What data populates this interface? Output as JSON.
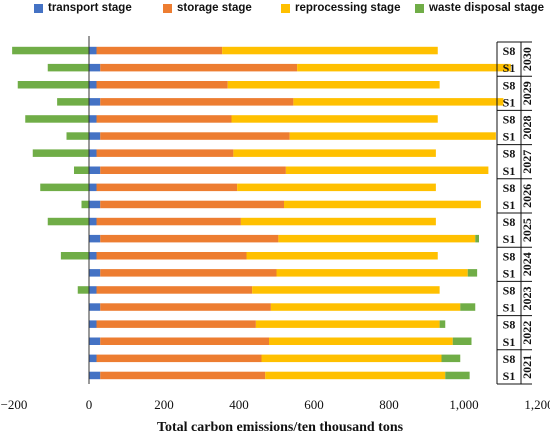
{
  "chart_data": {
    "type": "bar",
    "orientation": "horizontal",
    "stacked": true,
    "xlabel": "Total carbon emissions/ten thousand tons",
    "xlim": [
      -200,
      1200
    ],
    "xticks": [
      -200,
      0,
      200,
      400,
      600,
      800,
      1000,
      1200
    ],
    "xtick_labels": [
      "−200",
      "0",
      "200",
      "400",
      "600",
      "800",
      "1,000",
      "1,200"
    ],
    "legend_position": "top",
    "series": [
      {
        "name": "transport stage",
        "color": "#4472C4",
        "values": [
          20,
          30,
          20,
          30,
          20,
          30,
          20,
          30,
          20,
          30,
          20,
          30,
          20,
          30,
          20,
          30,
          20,
          30,
          20,
          30
        ]
      },
      {
        "name": "storage stage",
        "color": "#ED7D31",
        "values": [
          335,
          525,
          350,
          515,
          360,
          505,
          365,
          495,
          375,
          490,
          385,
          475,
          400,
          470,
          415,
          455,
          425,
          450,
          440,
          440
        ]
      },
      {
        "name": "reprocessing stage",
        "color": "#FFC000",
        "values": [
          575,
          570,
          565,
          560,
          550,
          550,
          540,
          540,
          530,
          525,
          520,
          525,
          510,
          510,
          500,
          505,
          490,
          490,
          480,
          480
        ]
      },
      {
        "name": "waste disposal stage",
        "color": "#70AD47",
        "values": [
          -205,
          -110,
          -190,
          -85,
          -170,
          -60,
          -150,
          -40,
          -130,
          -20,
          -110,
          10,
          -75,
          25,
          -30,
          40,
          15,
          50,
          50,
          65
        ]
      }
    ],
    "groups": [
      {
        "year": "2030",
        "rows": [
          "S8",
          "S1"
        ]
      },
      {
        "year": "2029",
        "rows": [
          "S8",
          "S1"
        ]
      },
      {
        "year": "2028",
        "rows": [
          "S8",
          "S1"
        ]
      },
      {
        "year": "2027",
        "rows": [
          "S8",
          "S1"
        ]
      },
      {
        "year": "2026",
        "rows": [
          "S8",
          "S1"
        ]
      },
      {
        "year": "2025",
        "rows": [
          "S8",
          "S1"
        ]
      },
      {
        "year": "2024",
        "rows": [
          "S8",
          "S1"
        ]
      },
      {
        "year": "2023",
        "rows": [
          "S8",
          "S1"
        ]
      },
      {
        "year": "2022",
        "rows": [
          "S8",
          "S1"
        ]
      },
      {
        "year": "2021",
        "rows": [
          "S8",
          "S1"
        ]
      }
    ]
  }
}
